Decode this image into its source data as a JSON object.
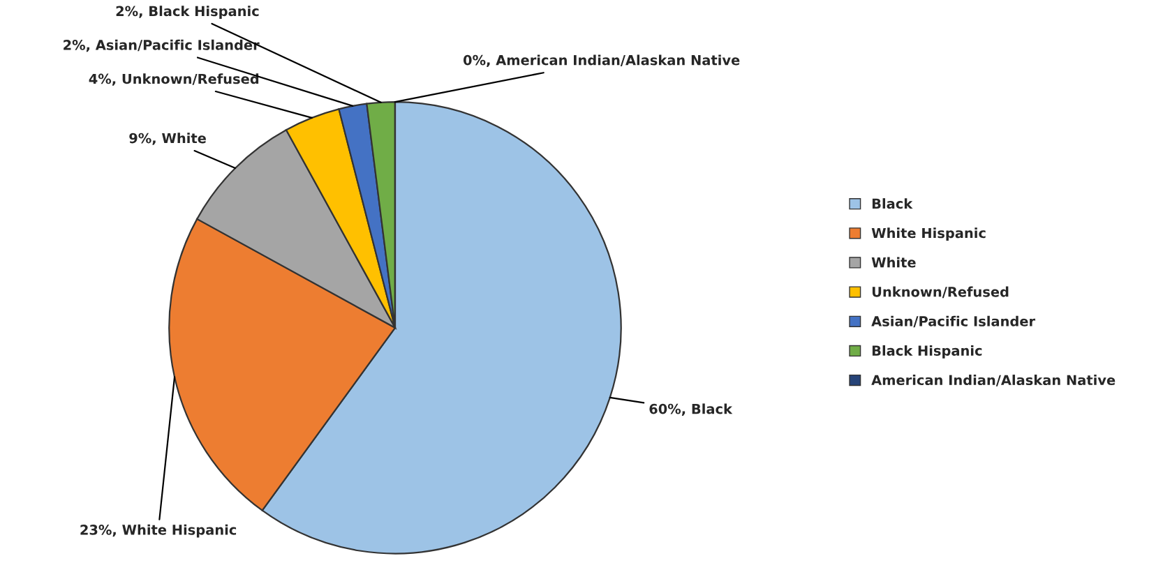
{
  "chart_data": {
    "type": "pie",
    "categories": [
      "Black",
      "White Hispanic",
      "White",
      "Unknown/Refused",
      "Asian/Pacific Islander",
      "Black Hispanic",
      "American Indian/Alaskan Native"
    ],
    "values": [
      60,
      23,
      9,
      4,
      2,
      2,
      0
    ],
    "colors": [
      "#9dc3e6",
      "#ed7d31",
      "#a5a5a5",
      "#ffc000",
      "#4472c4",
      "#70ad47",
      "#264478"
    ],
    "value_labels": [
      "60%, Black",
      "23%, White Hispanic",
      "9%, White",
      "4%, Unknown/Refused",
      "2%, Asian/Pacific Islander",
      "2%, Black Hispanic",
      "0%, American Indian/Alaskan Native"
    ],
    "legend": "right"
  }
}
